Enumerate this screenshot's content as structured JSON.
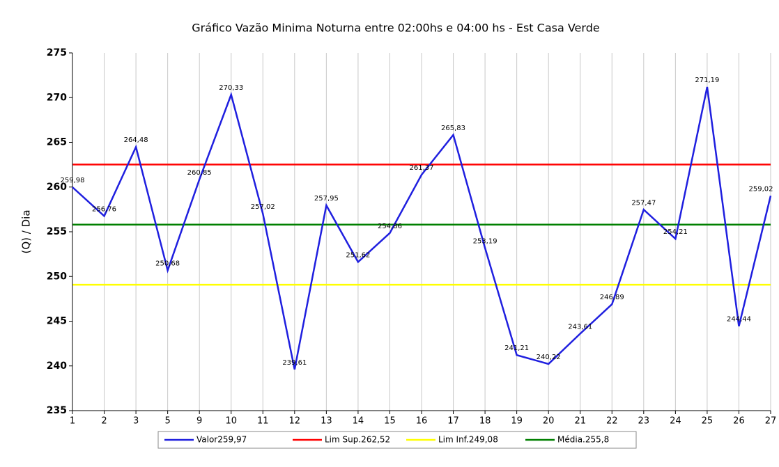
{
  "chart_data": {
    "type": "line",
    "title": "Gráfico Vazão Minima Noturna entre 02:00hs e 04:00 hs - Est Casa Verde",
    "y_label": "(Q)  / Dia",
    "categories": [
      "1",
      "2",
      "3",
      "5",
      "9",
      "10",
      "11",
      "12",
      "13",
      "14",
      "15",
      "16",
      "17",
      "18",
      "19",
      "20",
      "21",
      "22",
      "23",
      "24",
      "25",
      "26",
      "27"
    ],
    "series": [
      {
        "name": "Valor259,97",
        "color": "#1f1fdf",
        "values": [
          259.98,
          256.76,
          264.48,
          250.68,
          260.85,
          270.33,
          257.02,
          239.61,
          257.95,
          251.62,
          254.86,
          261.37,
          265.83,
          253.19,
          241.21,
          240.22,
          243.61,
          246.89,
          257.47,
          254.21,
          271.19,
          244.44,
          259.02
        ],
        "value_labels": [
          "259,98",
          "256,76",
          "264,48",
          "250,68",
          "260,85",
          "270,33",
          "257,02",
          "239,61",
          "257,95",
          "251,62",
          "254,86",
          "261,37",
          "265,83",
          "253,19",
          "241,21",
          "240,22",
          "243,61",
          "246,89",
          "257,47",
          "254,21",
          "271,19",
          "244,44",
          "259,02"
        ]
      }
    ],
    "reference_lines": [
      {
        "name": "Lim Sup.262,52",
        "value": 262.52,
        "color": "#ff0000"
      },
      {
        "name": "Lim Inf.249,08",
        "value": 249.08,
        "color": "#ffff00"
      },
      {
        "name": "Média.255,8",
        "value": 255.8,
        "color": "#008000"
      }
    ],
    "ylim": [
      235,
      275
    ],
    "yticks": [
      235,
      240,
      245,
      250,
      255,
      260,
      265,
      270,
      275
    ],
    "grid": "vertical"
  }
}
